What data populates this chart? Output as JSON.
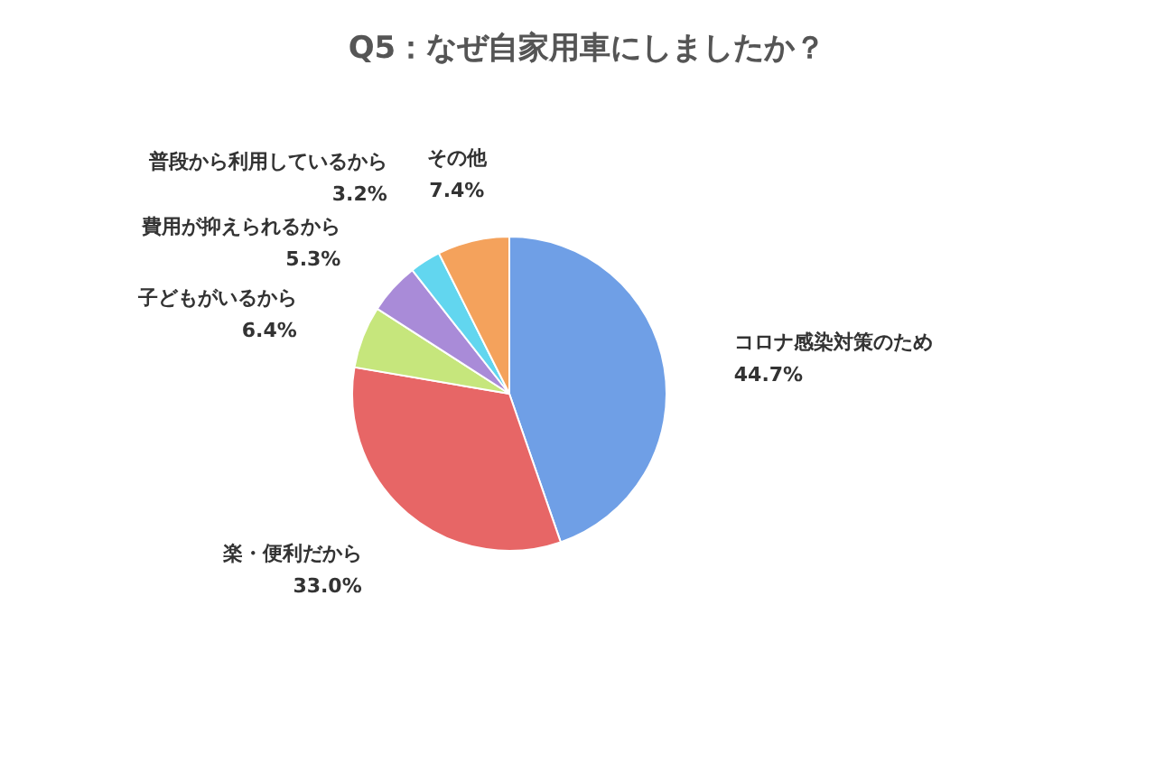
{
  "chart_data": {
    "type": "pie",
    "title": "Q5：なぜ自家用車にしましたか？",
    "categories": [
      "コロナ感染対策のため",
      "楽・便利だから",
      "子どもがいるから",
      "費用が抑えられるから",
      "普段から利用しているから",
      "その他"
    ],
    "values": [
      44.7,
      33.0,
      6.4,
      5.3,
      3.2,
      7.4
    ],
    "colors": [
      "#6f9fe6",
      "#e76666",
      "#c6e67c",
      "#a98bd8",
      "#62d6ef",
      "#f4a25c"
    ],
    "value_labels": [
      "44.7%",
      "33.0%",
      "6.4%",
      "5.3%",
      "3.2%",
      "7.4%"
    ]
  }
}
